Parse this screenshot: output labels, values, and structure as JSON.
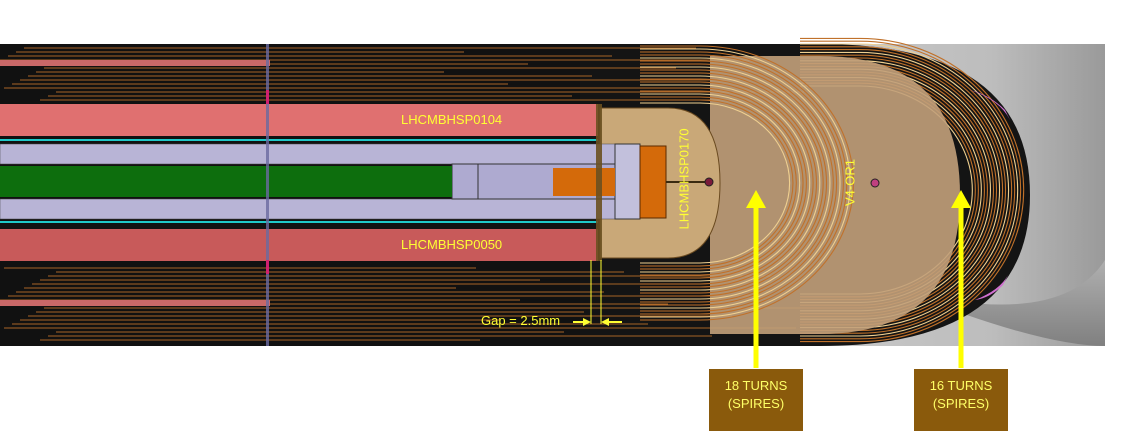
{
  "labels": {
    "spacer_upper": "LHCMBHSP0104",
    "spacer_lower": "LHCMBHSP0050",
    "end_spacer": "LHCMBHSP0170",
    "layer_ref": "V4-OR1",
    "gap": "Gap = 2.5mm"
  },
  "callouts": [
    {
      "line1": "18 TURNS",
      "line2": "(SPIRES)"
    },
    {
      "line1": "16 TURNS",
      "line2": "(SPIRES)"
    }
  ],
  "colors": {
    "background": "#ffffff",
    "body": "#111111",
    "turns": "#c0712a",
    "spacer_pink": "#e07070",
    "core_green": "#0d6e0d",
    "lavender": "#b8b4d6",
    "end_piece": "#d46a0a",
    "saddle": "#c9a878",
    "label": "#ffff33",
    "arrow": "#ffff00",
    "callout_box": "#8a5a0c"
  }
}
